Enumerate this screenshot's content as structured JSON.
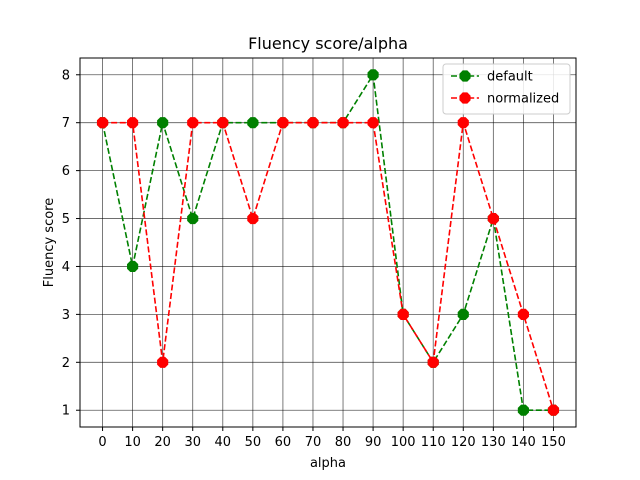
{
  "chart_data": {
    "type": "line",
    "title": "Fluency score/alpha",
    "xlabel": "alpha",
    "ylabel": "Fluency score",
    "x": [
      0,
      10,
      20,
      30,
      40,
      50,
      60,
      70,
      80,
      90,
      100,
      110,
      120,
      130,
      140,
      150
    ],
    "x_ticks": [
      "0",
      "10",
      "20",
      "30",
      "40",
      "50",
      "60",
      "70",
      "80",
      "90",
      "100",
      "110",
      "120",
      "130",
      "140",
      "150"
    ],
    "y_ticks": [
      "1",
      "2",
      "3",
      "4",
      "5",
      "6",
      "7",
      "8"
    ],
    "xlim": [
      -7.5,
      157.5
    ],
    "ylim": [
      0.65,
      8.35
    ],
    "grid": true,
    "legend_position": "top-right",
    "series": [
      {
        "name": "default",
        "color": "#008000",
        "linestyle": "dashed",
        "marker": "octagon",
        "values": [
          7,
          4,
          7,
          5,
          7,
          7,
          7,
          7,
          7,
          8,
          3,
          2,
          3,
          5,
          1,
          1
        ]
      },
      {
        "name": "normalized",
        "color": "#ff0000",
        "linestyle": "dashed",
        "marker": "octagon",
        "values": [
          7,
          7,
          2,
          7,
          7,
          5,
          7,
          7,
          7,
          7,
          3,
          2,
          7,
          5,
          3,
          1
        ]
      }
    ]
  }
}
